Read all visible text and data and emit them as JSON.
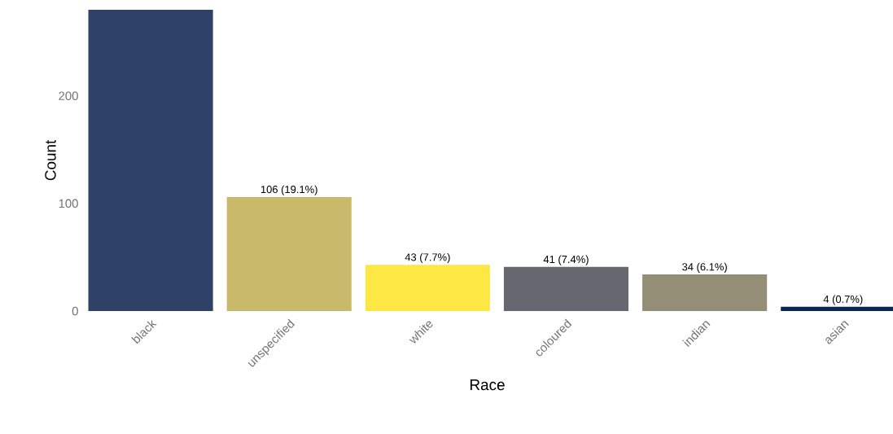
{
  "chart_data": {
    "type": "bar",
    "xlabel": "Race",
    "ylabel": "Count",
    "categories": [
      "black",
      "unspecified",
      "white",
      "coloured",
      "indian",
      "asian"
    ],
    "values": [
      280,
      106,
      43,
      41,
      34,
      4
    ],
    "value_labels": [
      null,
      "106 (19.1%)",
      "43 (7.7%)",
      "41 (7.4%)",
      "34 (6.1%)",
      "4 (0.7%)"
    ],
    "colors": [
      "#2f4166",
      "#c9b96a",
      "#fce744",
      "#666870",
      "#958e76",
      "#0a2650"
    ],
    "ylim": [
      0,
      280
    ],
    "yticks": [
      0,
      100,
      200
    ]
  }
}
